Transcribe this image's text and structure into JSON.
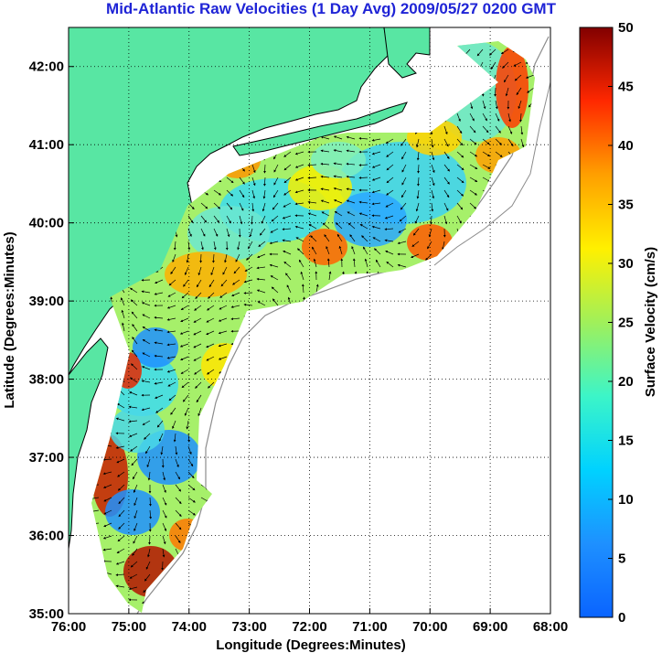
{
  "title": "Mid-Atlantic Raw Velocities (1 Day Avg) 2009/05/27 0200 GMT",
  "map": {
    "xlabel": "Longitude (Degrees:Minutes)",
    "ylabel": "Latitude (Degrees:Minutes)",
    "lon_range": [
      -76,
      -68
    ],
    "lat_range": [
      35,
      42.5
    ],
    "x_ticks": [
      {
        "value": -76,
        "label": "76:00"
      },
      {
        "value": -75,
        "label": "75:00"
      },
      {
        "value": -74,
        "label": "74:00"
      },
      {
        "value": -73,
        "label": "73:00"
      },
      {
        "value": -72,
        "label": "72:00"
      },
      {
        "value": -71,
        "label": "71:00"
      },
      {
        "value": -70,
        "label": "70:00"
      },
      {
        "value": -69,
        "label": "69:00"
      },
      {
        "value": -68,
        "label": "68:00"
      }
    ],
    "y_ticks": [
      {
        "value": 35,
        "label": "35:00"
      },
      {
        "value": 36,
        "label": "36:00"
      },
      {
        "value": 37,
        "label": "37:00"
      },
      {
        "value": 38,
        "label": "38:00"
      },
      {
        "value": 39,
        "label": "39:00"
      },
      {
        "value": 40,
        "label": "40:00"
      },
      {
        "value": 41,
        "label": "41:00"
      },
      {
        "value": 42,
        "label": "42:00"
      }
    ],
    "grid": "dotted",
    "colors": {
      "land": "#58e6a3",
      "coastline": "#000000",
      "bathymetry": "#8c8c8c",
      "arrows": "#000000"
    }
  },
  "colorbar": {
    "label": "Surface Velocity (cm/s)",
    "min": 0,
    "max": 50,
    "ticks": [
      {
        "value": 0,
        "label": "0"
      },
      {
        "value": 5,
        "label": "5"
      },
      {
        "value": 10,
        "label": "10"
      },
      {
        "value": 15,
        "label": "15"
      },
      {
        "value": 20,
        "label": "20"
      },
      {
        "value": 25,
        "label": "25"
      },
      {
        "value": 30,
        "label": "30"
      },
      {
        "value": 35,
        "label": "35"
      },
      {
        "value": 40,
        "label": "40"
      },
      {
        "value": 45,
        "label": "45"
      },
      {
        "value": 50,
        "label": "50"
      }
    ],
    "colormap": "jet"
  }
}
